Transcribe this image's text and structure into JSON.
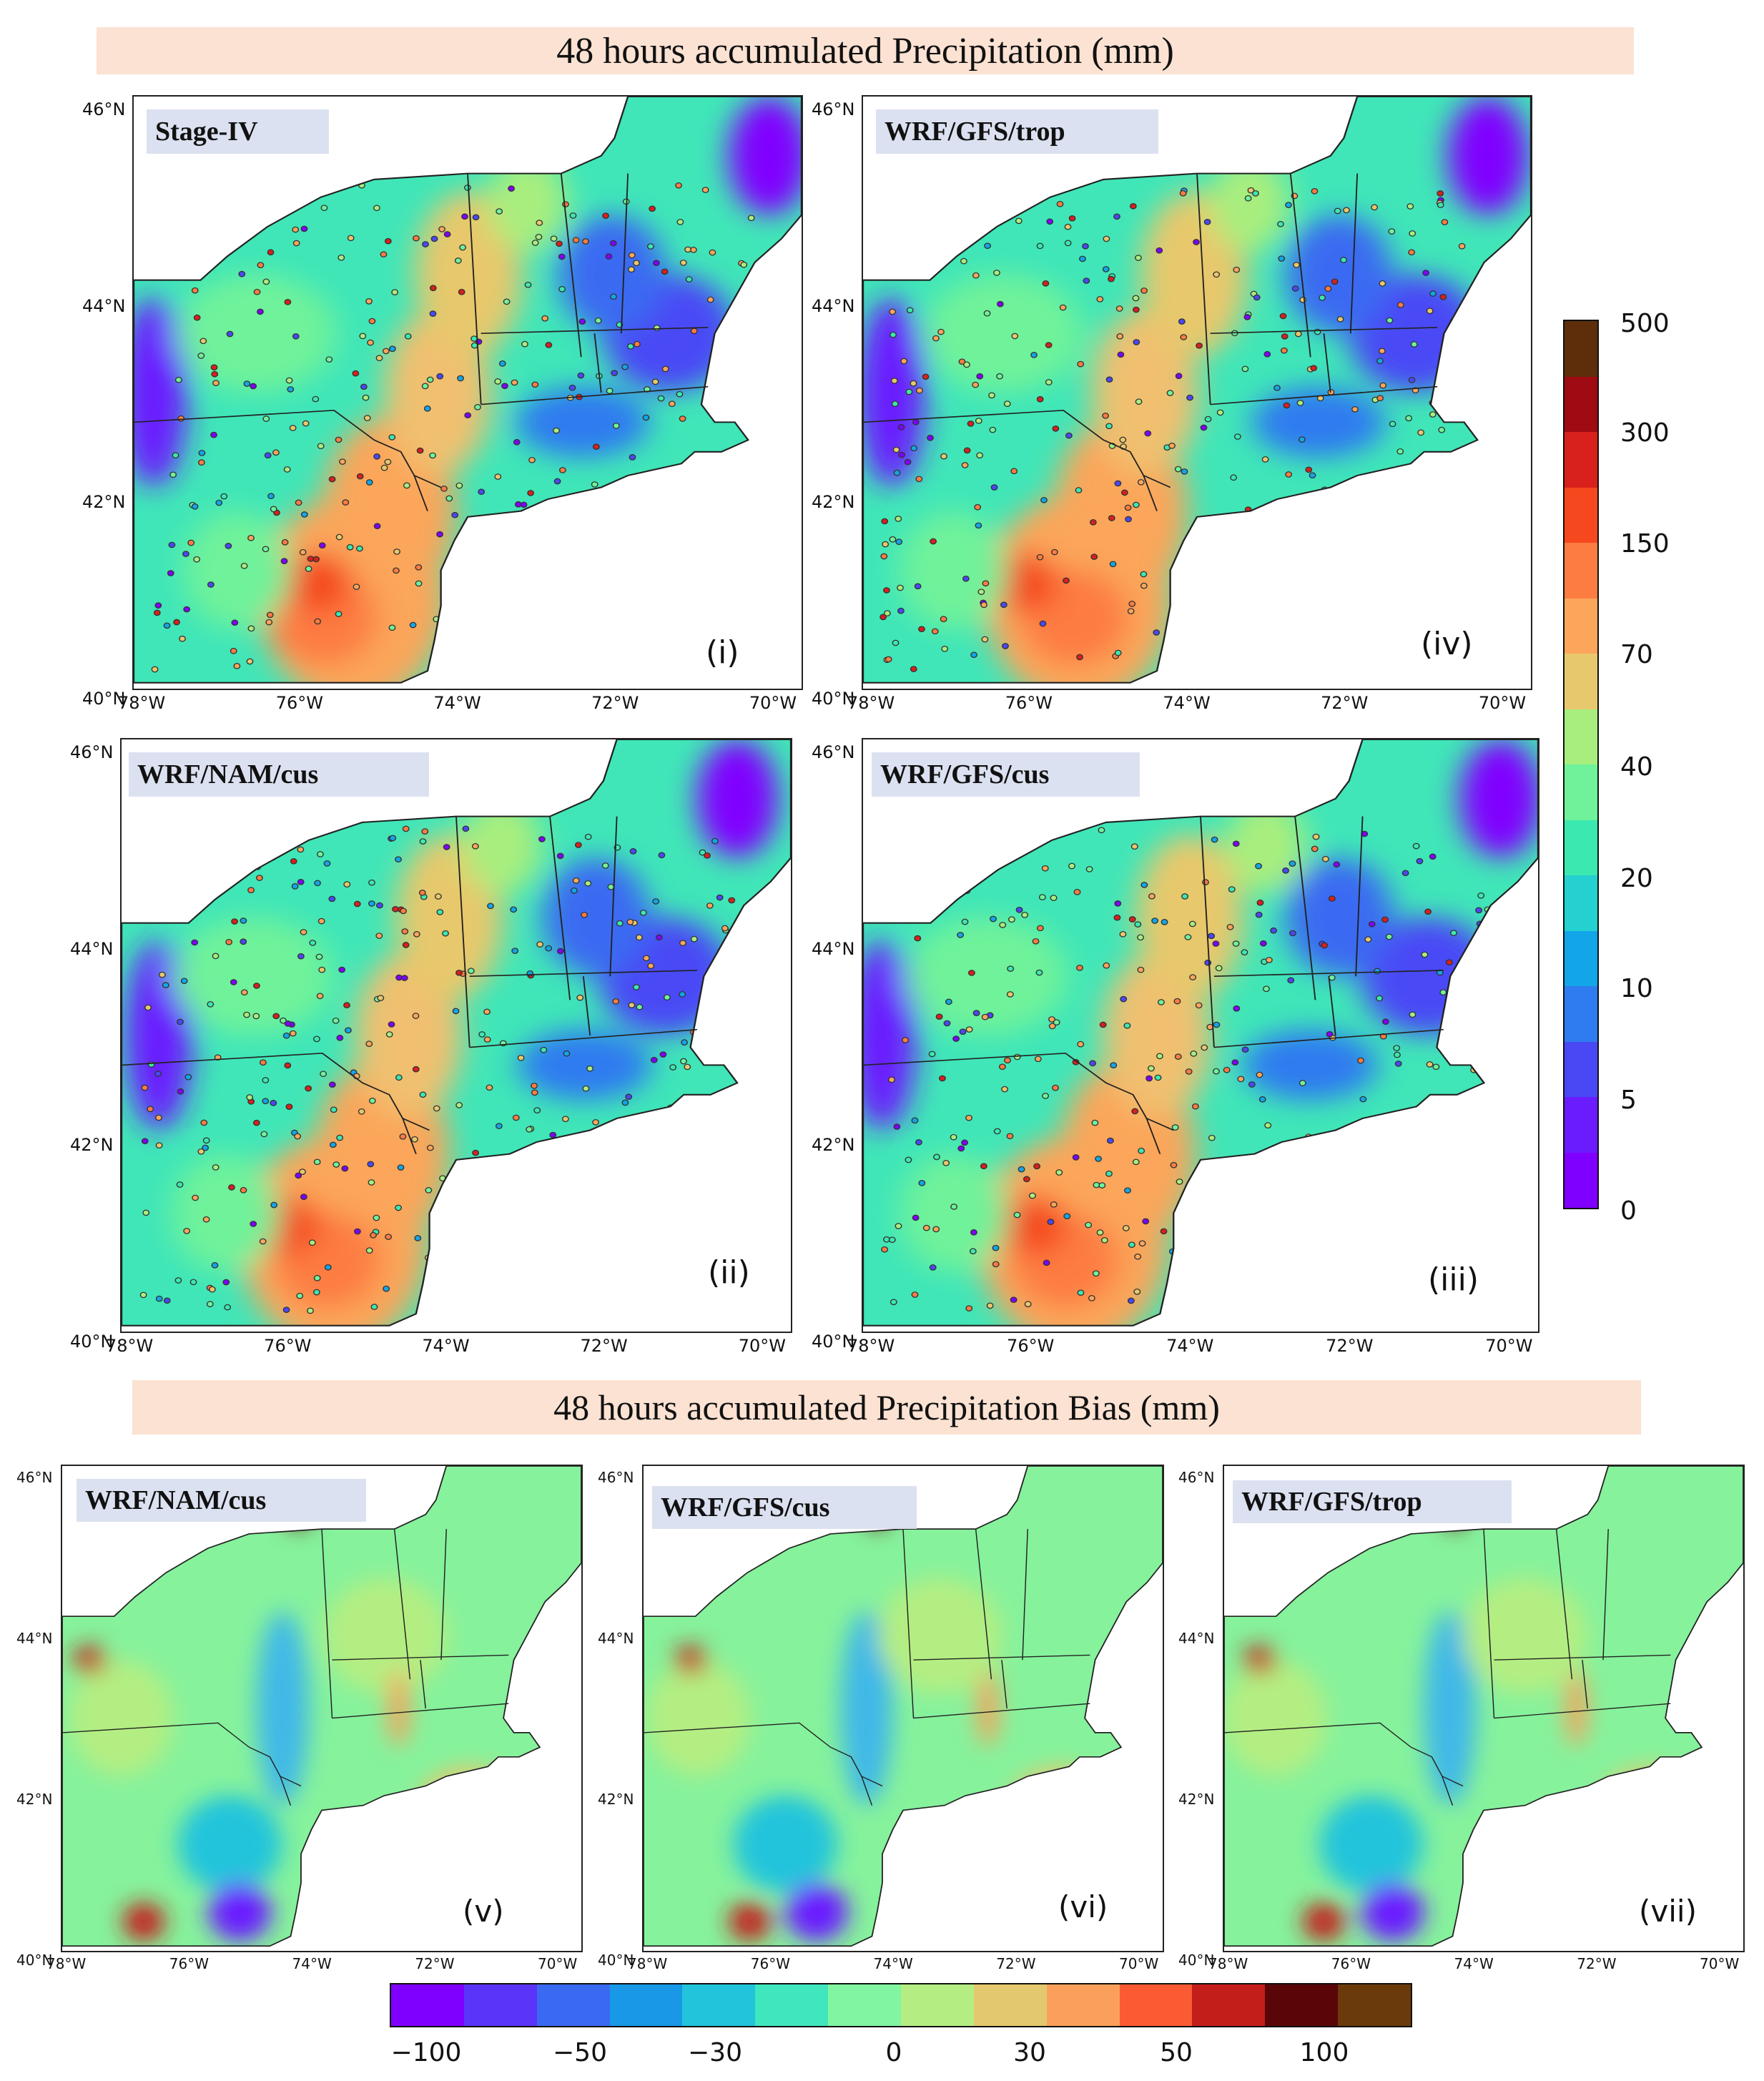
{
  "titles": {
    "top": "48 hours accumulated Precipitation (mm)",
    "bottom": "48 hours accumulated Precipitation Bias (mm)"
  },
  "precip_panels": [
    {
      "label": "Stage-IV",
      "roman": "(i)"
    },
    {
      "label": "WRF/GFS/trop",
      "roman": "(iv)"
    },
    {
      "label": "WRF/NAM/cus",
      "roman": "(ii)"
    },
    {
      "label": "WRF/GFS/cus",
      "roman": "(iii)"
    }
  ],
  "bias_panels": [
    {
      "label": "WRF/NAM/cus",
      "roman": "(v)"
    },
    {
      "label": "WRF/GFS/cus",
      "roman": "(vi)"
    },
    {
      "label": "WRF/GFS/trop",
      "roman": "(vii)"
    }
  ],
  "axes": {
    "lon_ticks": [
      "78°W",
      "76°W",
      "74°W",
      "72°W",
      "70°W"
    ],
    "lat_ticks": [
      "46°N",
      "44°N",
      "42°N",
      "40°N"
    ]
  },
  "colorbar_precip": {
    "tick_labels": [
      "500",
      "300",
      "150",
      "70",
      "40",
      "20",
      "10",
      "5",
      "0"
    ],
    "colors_bottom_to_top": [
      "#8000ff",
      "#6a1cff",
      "#4a48f5",
      "#2f7cf0",
      "#12a5e8",
      "#25d0d0",
      "#3be8b0",
      "#6ff29a",
      "#a8ee7e",
      "#e8c86c",
      "#fba65a",
      "#fd7c42",
      "#f5481e",
      "#d8201c",
      "#a00a12",
      "#5e2e0a"
    ]
  },
  "colorbar_bias": {
    "tick_labels": [
      "−100",
      "−50",
      "−30",
      "0",
      "30",
      "50",
      "100"
    ],
    "colors": [
      "#8000ff",
      "#5a34f8",
      "#3a6af2",
      "#1898e6",
      "#22c4dc",
      "#40e6be",
      "#82f5a0",
      "#b4ee82",
      "#e4c86e",
      "#fba05a",
      "#fb5a32",
      "#c41e1a",
      "#5a0608",
      "#6a3a0a"
    ]
  },
  "chart_data": [
    {
      "type": "heatmap",
      "title": "Stage-IV",
      "units": "mm",
      "levels": [
        0,
        5,
        10,
        20,
        40,
        70,
        150,
        300,
        500
      ]
    },
    {
      "type": "heatmap",
      "title": "WRF/GFS/trop",
      "units": "mm"
    },
    {
      "type": "heatmap",
      "title": "WRF/NAM/cus",
      "units": "mm"
    },
    {
      "type": "heatmap",
      "title": "WRF/GFS/cus",
      "units": "mm"
    },
    {
      "type": "heatmap",
      "title": "WRF/NAM/cus",
      "units": "mm",
      "levels": [
        -100,
        -50,
        -30,
        0,
        30,
        50,
        100
      ]
    },
    {
      "type": "heatmap",
      "title": "WRF/GFS/cus",
      "units": "mm"
    },
    {
      "type": "heatmap",
      "title": "WRF/GFS/trop",
      "units": "mm"
    }
  ]
}
